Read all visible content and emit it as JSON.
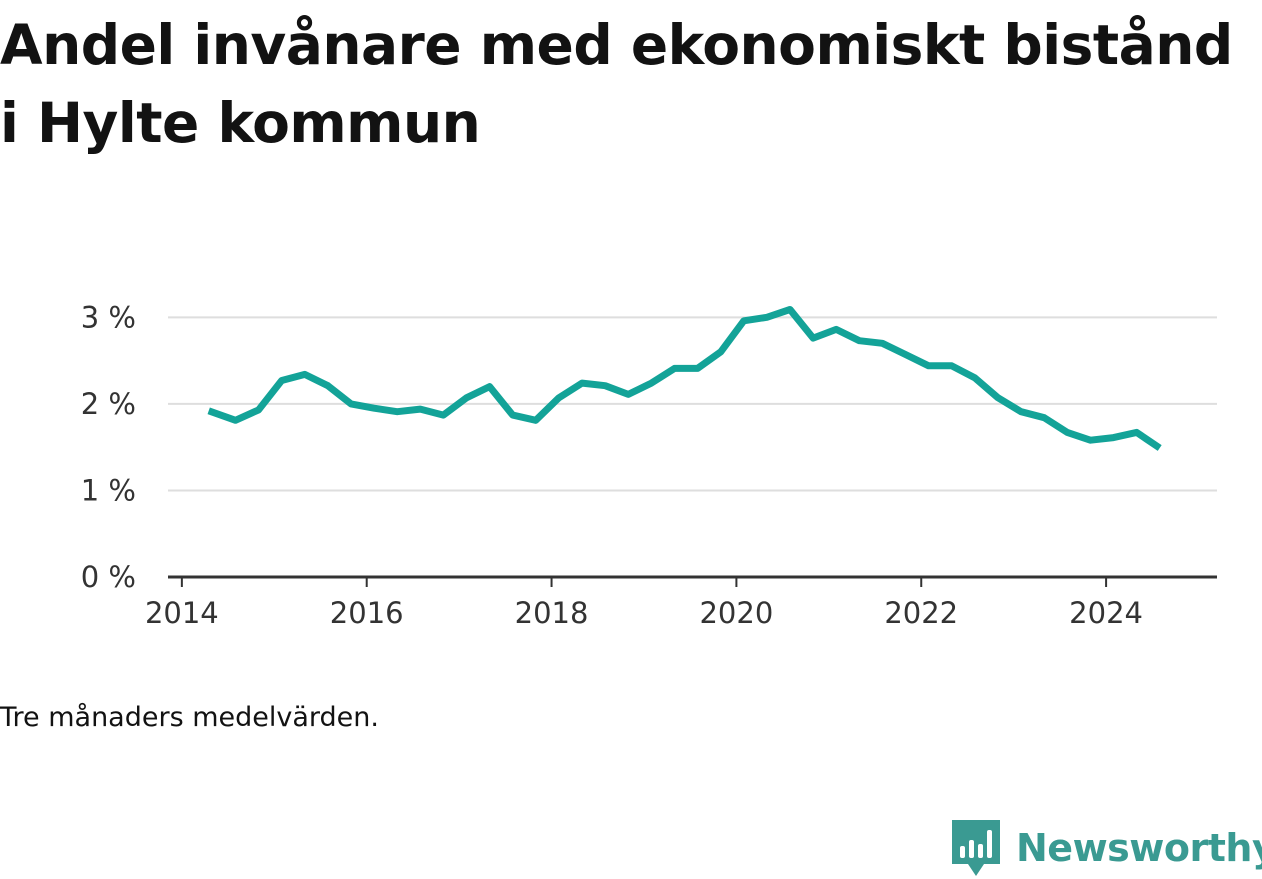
{
  "title": "Andel invånare med ekonomiskt bistånd i Hylte kommun",
  "note": "Tre månaders medelvärden.",
  "brand": {
    "name": "Newsworthy",
    "color": "#3a9a92",
    "icon": "newsworthy-logo-icon"
  },
  "colors": {
    "line": "#13a398",
    "grid": "#dedede",
    "axis": "#333333"
  },
  "chart_data": {
    "type": "line",
    "title": "Andel invånare med ekonomiskt bistånd i Hylte kommun",
    "xlabel": "",
    "ylabel": "",
    "xlim": [
      2013.85,
      2025.2
    ],
    "ylim": [
      0,
      3.2
    ],
    "x_ticks": [
      2014,
      2016,
      2018,
      2020,
      2022,
      2024
    ],
    "x_tick_labels": [
      "2014",
      "2016",
      "2018",
      "2020",
      "2022",
      "2024"
    ],
    "y_ticks": [
      0,
      1,
      2,
      3
    ],
    "y_tick_labels": [
      "0 %",
      "1 %",
      "2 %",
      "3 %"
    ],
    "grid": true,
    "series": [
      {
        "name": "Andel invånare med ekonomiskt bistånd",
        "x": [
          2014.29,
          2014.58,
          2014.83,
          2015.08,
          2015.33,
          2015.58,
          2015.83,
          2016.08,
          2016.33,
          2016.58,
          2016.83,
          2017.08,
          2017.33,
          2017.58,
          2017.83,
          2018.08,
          2018.33,
          2018.58,
          2018.83,
          2019.08,
          2019.33,
          2019.58,
          2019.83,
          2020.08,
          2020.33,
          2020.58,
          2020.83,
          2021.08,
          2021.33,
          2021.58,
          2021.83,
          2022.08,
          2022.33,
          2022.58,
          2022.83,
          2023.08,
          2023.33,
          2023.58,
          2023.83,
          2024.08,
          2024.33,
          2024.58
        ],
        "values": [
          1.92,
          1.81,
          1.93,
          2.27,
          2.34,
          2.21,
          2.0,
          1.95,
          1.91,
          1.94,
          1.87,
          2.07,
          2.2,
          1.87,
          1.81,
          2.07,
          2.24,
          2.21,
          2.11,
          2.24,
          2.41,
          2.41,
          2.6,
          2.96,
          3.0,
          3.09,
          2.76,
          2.86,
          2.73,
          2.7,
          2.57,
          2.44,
          2.44,
          2.3,
          2.07,
          1.91,
          1.84,
          1.67,
          1.58,
          1.61,
          1.67,
          1.49
        ]
      }
    ]
  }
}
